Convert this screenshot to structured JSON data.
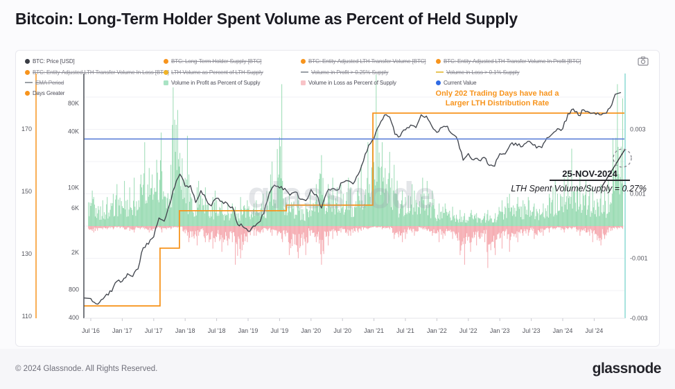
{
  "page": {
    "title": "Bitcoin: Long-Term Holder Spent Volume as Percent of Held Supply"
  },
  "footer": {
    "copyright": "© 2024 Glassnode. All Rights Reserved.",
    "brand": "glassnode"
  },
  "watermark": "glassnode",
  "legend": {
    "columns": [
      {
        "items": [
          {
            "label": "BTC: Price [USD]",
            "marker": "dot",
            "color": "#3a3d45",
            "struck": false
          },
          {
            "label": "BTC: Entity-Adjusted LTH Transfer Volume In Loss [BTC]",
            "marker": "dot",
            "color": "#f7941d",
            "struck": true
          },
          {
            "label": "EMA Period",
            "marker": "dash",
            "color": "#9aa0a6",
            "struck": true
          },
          {
            "label": "Days Greater",
            "marker": "dot",
            "color": "#f7941d",
            "struck": false
          }
        ]
      },
      {
        "items": [
          {
            "label": "BTC: Long-Term Holder Supply [BTC]",
            "marker": "dot",
            "color": "#f7941d",
            "struck": true
          },
          {
            "label": "LTH Volume as Percent of LTH Supply",
            "marker": "dot",
            "color": "#f0b429",
            "struck": true
          },
          {
            "label": "Volume in Profit as Percent of Supply",
            "marker": "square",
            "color": "#a9e3c4",
            "struck": false
          }
        ]
      },
      {
        "items": [
          {
            "label": "BTC: Entity-Adjusted LTH Transfer Volume [BTC]",
            "marker": "dot",
            "color": "#f7941d",
            "struck": true
          },
          {
            "label": "Volume in Profit > 0.25% Supply",
            "marker": "dash",
            "color": "#9aa0a6",
            "struck": true
          },
          {
            "label": "Volume in Loss as Percent of Supply",
            "marker": "square",
            "color": "#f8c3c7",
            "struck": false
          }
        ]
      },
      {
        "items": [
          {
            "label": "BTC: Entity-Adjusted LTH Transfer Volume In Profit [BTC]",
            "marker": "dot",
            "color": "#f7941d",
            "struck": true
          },
          {
            "label": "Volume in Loss > 0.1% Supply",
            "marker": "dash",
            "color": "#e8c558",
            "struck": true
          },
          {
            "label": "Current Value",
            "marker": "dot",
            "color": "#2f6be4",
            "struck": false
          }
        ]
      }
    ]
  },
  "chart_data": {
    "type": "composite",
    "title": "Bitcoin: Long-Term Holder Spent Volume as Percent of Held Supply",
    "x_axis": {
      "start_month": "2016-07",
      "end_month": "2024-11",
      "tick_labels": [
        "Jul '16",
        "Jan '17",
        "Jul '17",
        "Jan '18",
        "Jul '18",
        "Jan '19",
        "Jul '19",
        "Jan '20",
        "Jul '20",
        "Jan '21",
        "Jul '21",
        "Jan '22",
        "Jul '22",
        "Jan '23",
        "Jul '23",
        "Jan '24",
        "Jul '24"
      ]
    },
    "axes": {
      "days_axis": {
        "side": "far-left",
        "color": "#f7941d",
        "ticks": [
          "170",
          "150",
          "130",
          "110"
        ],
        "tick_values": [
          170,
          150,
          130,
          110
        ],
        "scale": "linear"
      },
      "price_axis": {
        "side": "left",
        "color": "#3f434b",
        "ticks": [
          "80K",
          "40K",
          "10K",
          "6K",
          "2K",
          "800",
          "400"
        ],
        "tick_values": [
          80000,
          40000,
          10000,
          6000,
          2000,
          800,
          400
        ],
        "scale": "log"
      },
      "pct_axis": {
        "side": "right",
        "ticks": [
          "0.003",
          "0.001",
          "-0.001",
          "-0.003"
        ],
        "tick_values": [
          0.003,
          0.001,
          -0.001,
          -0.003
        ],
        "scale": "linear",
        "grid": true
      }
    },
    "series": [
      {
        "name": "BTC: Price [USD]",
        "type": "line",
        "color": "#41454d",
        "axis": "price_axis",
        "monthly_values": [
          650,
          575,
          610,
          700,
          745,
          960,
          970,
          1190,
          1080,
          1350,
          2300,
          2480,
          2870,
          4700,
          4340,
          6450,
          9900,
          13800,
          10200,
          10300,
          6900,
          9250,
          7500,
          6400,
          7750,
          7010,
          6600,
          6300,
          4020,
          3740,
          3450,
          3850,
          4100,
          5320,
          8560,
          10800,
          10100,
          9600,
          8300,
          9150,
          7550,
          7200,
          9350,
          8550,
          5900,
          8650,
          9450,
          9140,
          11350,
          11650,
          10780,
          13800,
          19700,
          29000,
          33100,
          45200,
          58800,
          57750,
          37300,
          35000,
          41500,
          47150,
          43800,
          61300,
          57000,
          46200,
          38500,
          43200,
          45550,
          37650,
          31800,
          19900,
          23300,
          20050,
          19400,
          20500,
          17150,
          16550,
          23100,
          23150,
          28500,
          29250,
          27200,
          30450,
          29250,
          25950,
          26950,
          34650,
          37700,
          42250,
          43100,
          61200,
          71300,
          60650,
          67500,
          62700,
          64600,
          59000,
          63300,
          70200,
          97500
        ]
      },
      {
        "name": "Volume in Profit as Percent of Supply",
        "type": "bars",
        "color": "#8ed7ab",
        "axis": "pct_axis",
        "values_scale": 0.001,
        "monthly_peaks": [
          1.1,
          0.9,
          0.8,
          0.9,
          1.0,
          1.3,
          1.4,
          1.2,
          1.5,
          1.3,
          2.6,
          1.8,
          1.6,
          2.9,
          1.7,
          1.9,
          4.3,
          3.6,
          2.8,
          1.6,
          1.2,
          1.4,
          1.2,
          0.9,
          1.1,
          0.8,
          0.7,
          0.7,
          0.6,
          0.9,
          0.8,
          0.7,
          0.8,
          1.0,
          1.6,
          2.0,
          4.4,
          1.4,
          1.0,
          1.0,
          0.8,
          0.7,
          1.1,
          1.3,
          2.2,
          1.3,
          1.5,
          1.2,
          1.3,
          1.5,
          1.2,
          1.5,
          1.9,
          2.6,
          4.7,
          3.0,
          2.6,
          2.3,
          1.9,
          1.1,
          0.9,
          1.3,
          1.1,
          1.5,
          1.4,
          1.1,
          0.7,
          0.6,
          0.7,
          0.6,
          0.5,
          0.4,
          0.4,
          0.5,
          0.4,
          0.4,
          0.5,
          0.4,
          0.8,
          0.9,
          1.0,
          0.9,
          0.8,
          0.9,
          0.8,
          0.7,
          0.7,
          1.0,
          1.2,
          1.4,
          1.5,
          1.7,
          2.4,
          1.7,
          1.4,
          1.3,
          1.2,
          1.3,
          1.1,
          1.4,
          4.4
        ]
      },
      {
        "name": "Volume in Loss as Percent of Supply",
        "type": "bars-down",
        "color": "#f4a0a6",
        "axis": "pct_axis",
        "values_scale": -0.001,
        "monthly_peaks": [
          0.15,
          0.2,
          0.1,
          0.1,
          0.1,
          0.05,
          0.1,
          0.15,
          0.2,
          0.1,
          0.1,
          0.2,
          0.15,
          0.1,
          0.2,
          0.1,
          0.05,
          0.05,
          0.3,
          0.5,
          0.6,
          0.3,
          0.5,
          0.7,
          0.5,
          0.8,
          0.6,
          0.5,
          1.2,
          1.0,
          0.5,
          0.3,
          0.3,
          0.2,
          0.2,
          0.3,
          0.4,
          0.5,
          0.9,
          0.8,
          1.0,
          0.9,
          0.3,
          0.5,
          1.2,
          0.6,
          0.4,
          0.3,
          0.2,
          0.3,
          0.3,
          0.2,
          0.15,
          0.1,
          0.05,
          0.05,
          0.1,
          0.1,
          0.4,
          0.5,
          0.4,
          0.2,
          0.3,
          0.1,
          0.15,
          0.3,
          0.5,
          0.4,
          0.3,
          0.4,
          0.9,
          1.2,
          0.8,
          0.5,
          0.6,
          0.5,
          1.3,
          0.9,
          0.7,
          0.4,
          0.8,
          0.5,
          0.3,
          0.3,
          0.2,
          0.4,
          0.3,
          0.2,
          0.1,
          0.1,
          0.2,
          0.1,
          0.1,
          0.3,
          0.2,
          0.3,
          0.5,
          0.6,
          0.4,
          0.2,
          0.1
        ]
      },
      {
        "name": "Current Value",
        "type": "hline",
        "color": "#5b7fd8",
        "axis": "pct_axis",
        "value": 0.0027
      },
      {
        "name": "Days Greater",
        "type": "step",
        "color": "#f7941d",
        "axis": "days_axis",
        "breakpoints": [
          {
            "month_index": 0,
            "value": 113.3
          },
          {
            "month_index": 13.2,
            "value": 131.8
          },
          {
            "month_index": 16.9,
            "value": 143.8
          },
          {
            "month_index": 37.3,
            "value": 145.6
          },
          {
            "month_index": 53.8,
            "value": 175.1
          }
        ]
      }
    ],
    "annotations": {
      "note_lines": [
        "Only 202 Trading Days have had a",
        "Larger LTH Distribution Rate"
      ],
      "note_color": "#f7941d",
      "date_label": "25-NOV-2024",
      "value_label": "LTH Spent Volume/Supply = 0.27%",
      "highlight_marker": "dashed-circle"
    }
  }
}
